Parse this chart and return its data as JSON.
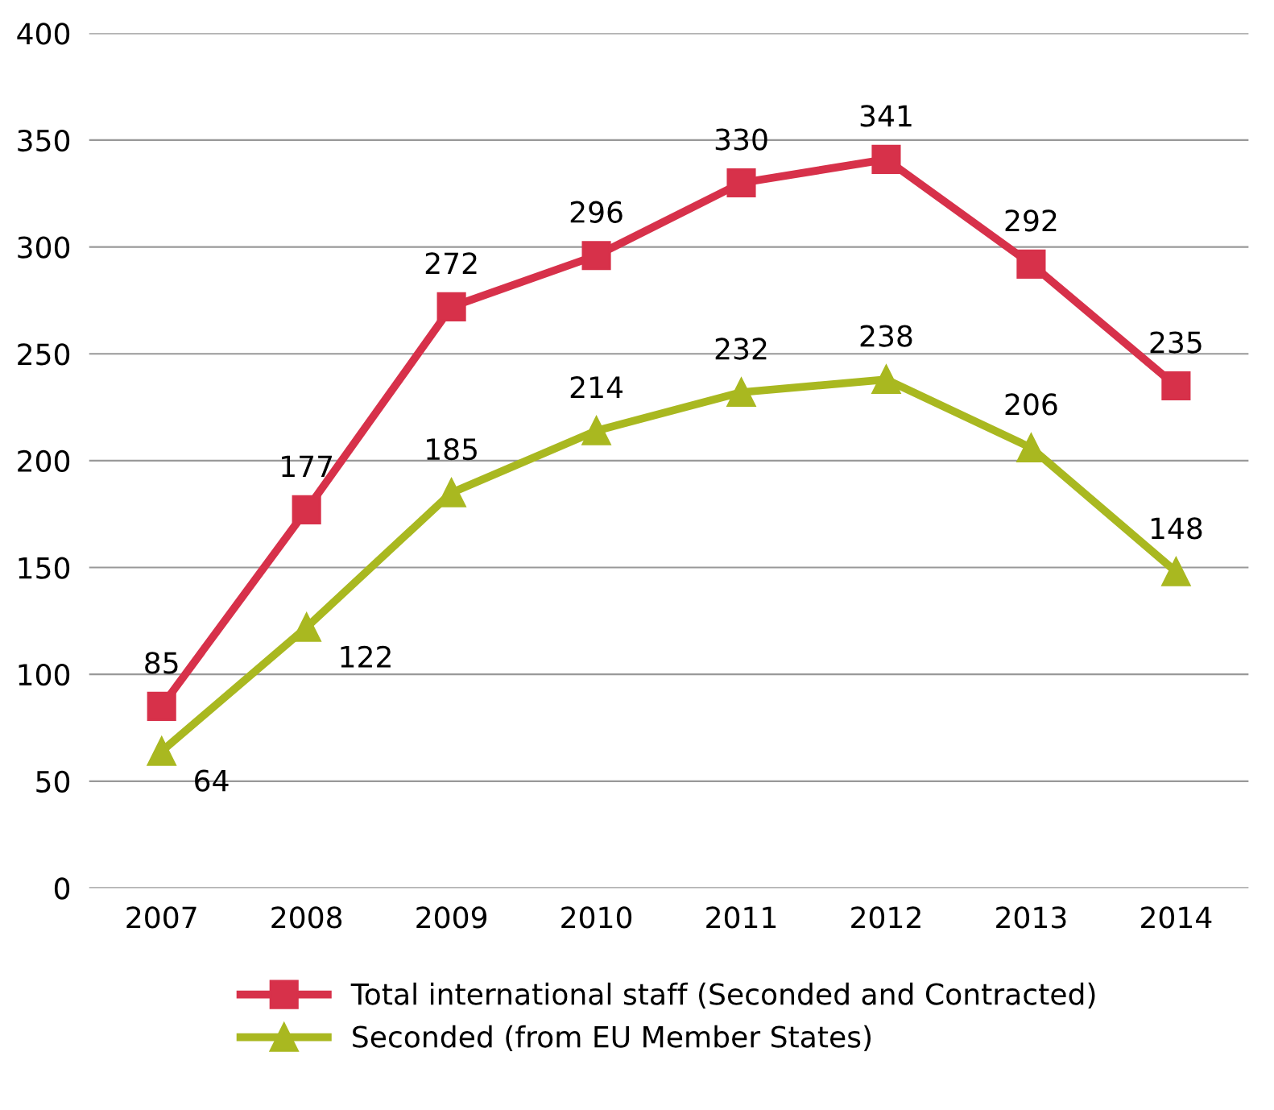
{
  "chart_data": {
    "type": "line",
    "categories": [
      "2007",
      "2008",
      "2009",
      "2010",
      "2011",
      "2012",
      "2013",
      "2014"
    ],
    "series": [
      {
        "name": "Total international staff (Seconded and Contracted)",
        "color": "#d7314a",
        "marker": "square",
        "values": [
          85,
          177,
          272,
          296,
          330,
          341,
          292,
          235
        ]
      },
      {
        "name": "Seconded (from EU Member States)",
        "color": "#a9b820",
        "marker": "triangle",
        "values": [
          64,
          122,
          185,
          214,
          232,
          238,
          206,
          148
        ]
      }
    ],
    "ylim": [
      0,
      400
    ],
    "yticks": [
      0,
      50,
      100,
      150,
      200,
      250,
      300,
      350,
      400
    ],
    "grid": "y",
    "legend": "bottom",
    "data_labels": true,
    "line_style": "solid"
  }
}
